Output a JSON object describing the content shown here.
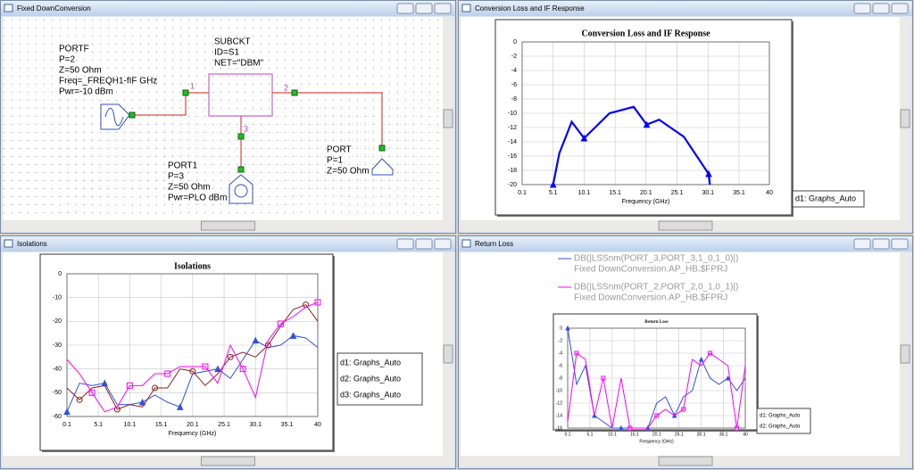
{
  "windows": [
    {
      "title": "Fixed DownConversion"
    },
    {
      "title": "Conversion Loss and IF Response"
    },
    {
      "title": "Isolations"
    },
    {
      "title": "Return Loss"
    }
  ],
  "schematic": {
    "portf": [
      "PORTF",
      "P=2",
      "Z=50 Ohm",
      "Freq=_FREQH1-fIF GHz",
      "Pwr=-10 dBm"
    ],
    "subckt": [
      "SUBCKT",
      "ID=S1",
      "NET=\"DBM\""
    ],
    "pins": [
      "1",
      "2",
      "3"
    ],
    "port1": [
      "PORT1",
      "P=3",
      "Z=50 Ohm",
      "Pwr=PLO dBm"
    ],
    "port": [
      "PORT",
      "P=1",
      "Z=50 Ohm"
    ]
  },
  "chart_data": [
    {
      "type": "line",
      "title": "Conversion Loss and IF Response",
      "xlabel": "Frequency (GHz)",
      "xlim": [
        0.1,
        40
      ],
      "xticks": [
        0.1,
        5.1,
        10.1,
        15.1,
        20.1,
        25.1,
        30.1,
        35.1,
        40
      ],
      "ylim": [
        -20,
        0
      ],
      "yticks": [
        0,
        -2,
        -4,
        -6,
        -8,
        -10,
        -12,
        -14,
        -16,
        -18,
        -20
      ],
      "grid": true,
      "x": [
        5.1,
        6.1,
        8.1,
        10.1,
        14.2,
        18.1,
        20.2,
        22.2,
        26.2,
        30.2,
        30.4
      ],
      "series": [
        {
          "name": "d1: Graphs_Auto",
          "color": "#0000ff",
          "marker": "triangle",
          "values": [
            -20,
            -15.6,
            -11.2,
            -13.5,
            -10,
            -9.1,
            -11.6,
            -10.9,
            -13.3,
            -18.5,
            -20
          ]
        }
      ]
    },
    {
      "type": "line",
      "title": "Isolations",
      "xlabel": "Frequency (GHz)",
      "xlim": [
        0.1,
        40
      ],
      "xticks": [
        0.1,
        5.1,
        10.1,
        15.1,
        20.1,
        25.1,
        30.1,
        35.1,
        40
      ],
      "ylim": [
        -60,
        0
      ],
      "yticks": [
        0,
        -10,
        -20,
        -30,
        -40,
        -50,
        -60
      ],
      "grid": true,
      "x": [
        0.1,
        2.1,
        4.1,
        6.1,
        8.1,
        10.1,
        12.1,
        14.1,
        16.1,
        18.1,
        20.1,
        22.1,
        24.1,
        26.1,
        28.1,
        30.1,
        32.1,
        34.1,
        36.1,
        38.1,
        40
      ],
      "series": [
        {
          "name": "d1: Graphs_Auto",
          "color": "#3050e0",
          "marker": "triangle",
          "values": [
            -58,
            -46,
            -47,
            -46,
            -55,
            -55,
            -54,
            -51,
            -54,
            -56,
            -42,
            -41,
            -40,
            -44,
            -36,
            -28,
            -31,
            -30,
            -26,
            -27,
            -31
          ]
        },
        {
          "name": "d2: Graphs_Auto",
          "color": "#8b2020",
          "marker": "circle",
          "values": [
            -48,
            -53,
            -48,
            -47,
            -57,
            -55,
            -56,
            -48,
            -48,
            -40,
            -41,
            -47,
            -42,
            -35,
            -33,
            -35,
            -30,
            -22,
            -15,
            -13,
            -20
          ]
        },
        {
          "name": "d3: Graphs_Auto",
          "color": "#ff00ff",
          "marker": "square",
          "values": [
            -36,
            -42,
            -50,
            -58,
            -56,
            -47,
            -47,
            -42,
            -42,
            -39,
            -39,
            -39,
            -46,
            -30,
            -40,
            -52,
            -28,
            -21,
            -18,
            -14,
            -12
          ]
        }
      ]
    },
    {
      "type": "line",
      "title": "Return Loss",
      "xlabel": "Frequency (GHz)",
      "xlim": [
        0.1,
        40
      ],
      "xticks": [
        0.1,
        5.1,
        10.1,
        15.1,
        20.1,
        25.1,
        30.1,
        35.1,
        40
      ],
      "ylim": [
        -16,
        0
      ],
      "yticks": [
        0,
        -2,
        -4,
        -6,
        -8,
        -10,
        -12,
        -14,
        -16
      ],
      "grid": true,
      "x": [
        0.1,
        2.1,
        4.1,
        6.1,
        8.1,
        10.1,
        12.1,
        14.1,
        16.1,
        18.1,
        20.1,
        22.1,
        24.1,
        26.1,
        28.1,
        30.1,
        32.1,
        34.1,
        36.1,
        38.1,
        40
      ],
      "series": [
        {
          "name": "d1: Graphs_Auto",
          "trace": "DB(|LSSnm(PORT_3,PORT_3,1_0,1_0)|)",
          "source": "Fixed DownConversion.AP_HB.$FPRJ",
          "color": "#3050e0",
          "marker": "triangle",
          "values": [
            0,
            -9,
            -6,
            -14,
            -15,
            -16,
            -16,
            -16,
            -16,
            -16,
            -12,
            -11,
            -14,
            -11,
            -10,
            -5,
            -8,
            -9,
            -8,
            -10,
            -8
          ]
        },
        {
          "name": "d2: Graphs_Auto",
          "trace": "DB(|LSSnm(PORT_2,PORT_2,0_1,0_1)|)",
          "source": "Fixed DownConversion.AP_HB.$FPRJ",
          "color": "#ff00ff",
          "marker": "square",
          "values": [
            -15,
            -4,
            -5,
            -14,
            -8,
            -16,
            -8,
            -16,
            -16,
            -16,
            -14,
            -13,
            -14,
            -13,
            -5,
            -6,
            -4,
            -5,
            -6,
            -16,
            -6
          ]
        }
      ]
    }
  ]
}
